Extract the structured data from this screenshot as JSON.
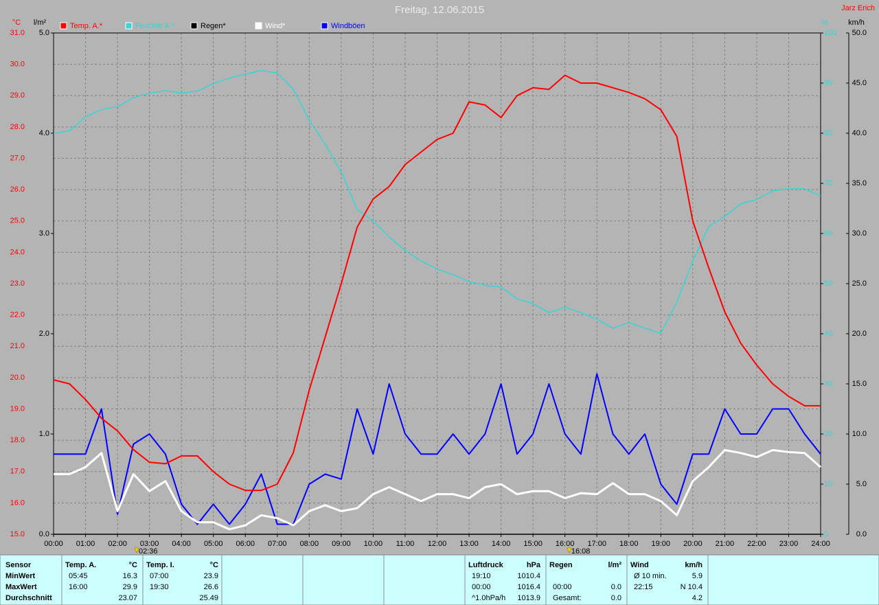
{
  "chart_data": {
    "type": "line",
    "title": "Freitag, 12.06.2015",
    "author": "Jarz Erich",
    "axis_units": {
      "y": "°C",
      "y3": "l/m²",
      "y2": "%",
      "y4": "km/h"
    },
    "xlim": [
      0,
      24
    ],
    "xticks": [
      {
        "value": 0,
        "label": "00:00"
      },
      {
        "value": 1,
        "label": "01:00"
      },
      {
        "value": 2,
        "label": "02:00"
      },
      {
        "value": 3,
        "label": "03:00"
      },
      {
        "value": 4,
        "label": "04:00"
      },
      {
        "value": 5,
        "label": "05:00"
      },
      {
        "value": 6,
        "label": "06:00"
      },
      {
        "value": 7,
        "label": "07:00"
      },
      {
        "value": 8,
        "label": "08:00"
      },
      {
        "value": 9,
        "label": "09:00"
      },
      {
        "value": 10,
        "label": "10:00"
      },
      {
        "value": 11,
        "label": "11:00"
      },
      {
        "value": 12,
        "label": "12:00"
      },
      {
        "value": 13,
        "label": "13:00"
      },
      {
        "value": 14,
        "label": "14:00"
      },
      {
        "value": 15,
        "label": "15:00"
      },
      {
        "value": 16,
        "label": "16:00"
      },
      {
        "value": 17,
        "label": "17:00"
      },
      {
        "value": 18,
        "label": "18:00"
      },
      {
        "value": 19,
        "label": "19:00"
      },
      {
        "value": 20,
        "label": "20:00"
      },
      {
        "value": 21,
        "label": "21:00"
      },
      {
        "value": 22,
        "label": "22:00"
      },
      {
        "value": 23,
        "label": "23:00"
      },
      {
        "value": 24,
        "label": "24:00"
      }
    ],
    "ylim": [
      15,
      31
    ],
    "yticks": [
      {
        "value": 15,
        "label": "15.0"
      },
      {
        "value": 16,
        "label": "16.0"
      },
      {
        "value": 17,
        "label": "17.0"
      },
      {
        "value": 18,
        "label": "18.0"
      },
      {
        "value": 19,
        "label": "19.0"
      },
      {
        "value": 20,
        "label": "20.0"
      },
      {
        "value": 21,
        "label": "21.0"
      },
      {
        "value": 22,
        "label": "22.0"
      },
      {
        "value": 23,
        "label": "23.0"
      },
      {
        "value": 24,
        "label": "24.0"
      },
      {
        "value": 25,
        "label": "25.0"
      },
      {
        "value": 26,
        "label": "26.0"
      },
      {
        "value": 27,
        "label": "27.0"
      },
      {
        "value": 28,
        "label": "28.0"
      },
      {
        "value": 29,
        "label": "29.0"
      },
      {
        "value": 30,
        "label": "30.0"
      },
      {
        "value": 31,
        "label": "31.0"
      }
    ],
    "y3lim": [
      0,
      5
    ],
    "y3ticks": [
      {
        "value": 0,
        "label": "0.0"
      },
      {
        "value": 1,
        "label": "1.0"
      },
      {
        "value": 2,
        "label": "2.0"
      },
      {
        "value": 3,
        "label": "3.0"
      },
      {
        "value": 4,
        "label": "4.0"
      },
      {
        "value": 5,
        "label": "5.0"
      }
    ],
    "y2lim": [
      0,
      100
    ],
    "y2ticks": [
      0,
      10,
      20,
      30,
      40,
      50,
      60,
      70,
      80,
      90,
      100
    ],
    "y4lim": [
      0,
      50
    ],
    "y4ticks": [
      {
        "value": 0,
        "label": "0.0"
      },
      {
        "value": 5,
        "label": "5.0"
      },
      {
        "value": 10,
        "label": "10.0"
      },
      {
        "value": 15,
        "label": "15.0"
      },
      {
        "value": 20,
        "label": "20.0"
      },
      {
        "value": 25,
        "label": "25.0"
      },
      {
        "value": 30,
        "label": "30.0"
      },
      {
        "value": 35,
        "label": "35.0"
      },
      {
        "value": 40,
        "label": "40.0"
      },
      {
        "value": 45,
        "label": "45.0"
      },
      {
        "value": 50,
        "label": "50.0"
      }
    ],
    "grid": true,
    "x": [
      0,
      0.5,
      1,
      1.5,
      2,
      2.5,
      3,
      3.5,
      4,
      4.5,
      5,
      5.5,
      6,
      6.5,
      7,
      7.5,
      8,
      8.5,
      9,
      9.5,
      10,
      10.5,
      11,
      11.5,
      12,
      12.5,
      13,
      13.5,
      14,
      14.5,
      15,
      15.5,
      16,
      16.5,
      17,
      17.5,
      18,
      18.5,
      19,
      19.5,
      20,
      20.5,
      21,
      21.5,
      22,
      22.5,
      23,
      23.5,
      24
    ],
    "series": [
      {
        "name": "Temp. A.*",
        "color": "#ff0000",
        "axis": "y",
        "values": [
          19.93,
          19.8,
          19.3,
          18.7,
          18.3,
          17.7,
          17.3,
          17.25,
          17.5,
          17.5,
          17.0,
          16.6,
          16.4,
          16.4,
          16.6,
          17.6,
          19.6,
          21.3,
          23.0,
          24.8,
          25.7,
          26.1,
          26.8,
          27.2,
          27.6,
          27.8,
          28.8,
          28.7,
          28.3,
          29.0,
          29.25,
          29.2,
          29.65,
          29.4,
          29.4,
          29.25,
          29.1,
          28.9,
          28.55,
          27.7,
          25.0,
          23.5,
          22.1,
          21.1,
          20.4,
          19.8,
          19.4,
          19.1,
          19.1
        ]
      },
      {
        "name": "Feuchte A.*",
        "color": "#33d6d6",
        "axis": "y2",
        "values": [
          79.9,
          80.5,
          83.3,
          84.7,
          85.3,
          87.1,
          88,
          88.5,
          88,
          88.4,
          89.9,
          91,
          91.8,
          92.5,
          92,
          88.8,
          82.6,
          77.8,
          72.3,
          64.8,
          62.5,
          59.3,
          56.6,
          54.5,
          52.9,
          51.8,
          50.4,
          49.7,
          49.3,
          47,
          46,
          44.2,
          45.3,
          44.2,
          42.9,
          41.1,
          42.2,
          41.1,
          40.1,
          46.3,
          54.5,
          61.4,
          63.4,
          65.9,
          66.8,
          68.5,
          68.9,
          68.9,
          67.5
        ]
      },
      {
        "name": "Regen*",
        "color": "#000000",
        "axis": "y3",
        "values": [
          0,
          0,
          0,
          0,
          0,
          0,
          0,
          0,
          0,
          0,
          0,
          0,
          0,
          0,
          0,
          0,
          0,
          0,
          0,
          0,
          0,
          0,
          0,
          0,
          0,
          0,
          0,
          0,
          0,
          0,
          0,
          0,
          0,
          0,
          0,
          0,
          0,
          0,
          0,
          0,
          0,
          0,
          0,
          0,
          0,
          0,
          0,
          0,
          0
        ]
      },
      {
        "name": "Wind*",
        "color": "#ffffff",
        "axis": "y4",
        "values": [
          6,
          6,
          6.7,
          8.1,
          2.3,
          6,
          4.3,
          5.3,
          2.3,
          1.2,
          1.2,
          0.5,
          0.9,
          1.9,
          1.6,
          0.9,
          2.3,
          2.9,
          2.3,
          2.6,
          4,
          4.7,
          4,
          3.3,
          4,
          4,
          3.6,
          4.7,
          5,
          4,
          4.3,
          4.3,
          3.6,
          4.1,
          4,
          5.1,
          4,
          4,
          3.3,
          1.9,
          5.3,
          6.7,
          8.4,
          8.1,
          7.7,
          8.4,
          8.2,
          8.1,
          6.7
        ]
      },
      {
        "name": "Windböen",
        "color": "#0000ff",
        "axis": "y4",
        "values": [
          8,
          8,
          8,
          12.5,
          2,
          9,
          10,
          8,
          3,
          1,
          3,
          1,
          3,
          6,
          1,
          1,
          5,
          6,
          5.5,
          12.5,
          8,
          15,
          10,
          8,
          8,
          10,
          8,
          10,
          15,
          8,
          10,
          15,
          10,
          8,
          16,
          10,
          8,
          10,
          5,
          3,
          8,
          8,
          12.5,
          10,
          10,
          12.5,
          12.5,
          10,
          8
        ]
      }
    ],
    "markers": [
      {
        "x": 2.6,
        "label": "02:36"
      },
      {
        "x": 16.1333,
        "label": "16:08"
      }
    ]
  },
  "stats": {
    "row_labels": [
      "Sensor",
      "MinWert",
      "MaxWert",
      "Durchschnitt"
    ],
    "panels": [
      {
        "title": "Temp. A.",
        "unit": "°C",
        "rows": [
          {
            "time": "05:45",
            "value": "16.3"
          },
          {
            "time": "16:00",
            "value": "29.9"
          },
          {
            "value": "23.07"
          }
        ]
      },
      {
        "title": "Temp. I.",
        "unit": "°C",
        "rows": [
          {
            "time": "07:00",
            "value": "23.9"
          },
          {
            "time": "19:30",
            "value": "26.6"
          },
          {
            "value": "25.49"
          }
        ]
      },
      {
        "title": "Luftdruck",
        "unit": "hPa",
        "rows": [
          {
            "time": "19:10",
            "value": "1010.4"
          },
          {
            "time": "00:00",
            "value": "1016.4"
          },
          {
            "time": "^1.0hPa/h",
            "value": "1013.9"
          }
        ]
      },
      {
        "title": "Regen",
        "unit": "l/m²",
        "rows": [
          null,
          {
            "time": "00:00",
            "value": "0.0"
          },
          {
            "time": "Gesamt:",
            "value": "0.0"
          }
        ]
      },
      {
        "title": "Wind",
        "unit": "km/h",
        "rows": [
          {
            "time": "Ø 10 min.",
            "value": "5.9"
          },
          {
            "time": "22:15",
            "value": "N 10.4"
          },
          {
            "value": "4.2"
          }
        ]
      }
    ]
  }
}
